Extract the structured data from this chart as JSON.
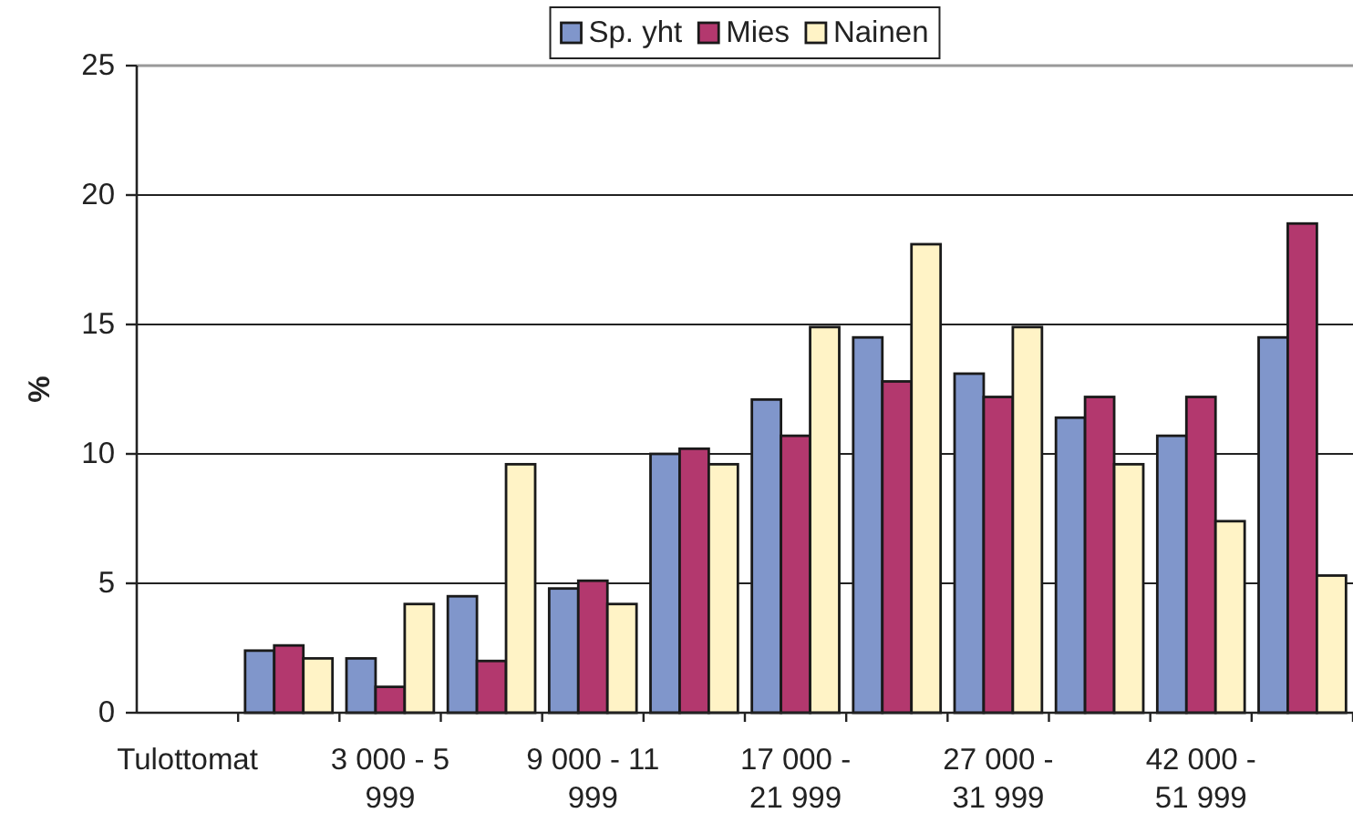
{
  "chart_data": {
    "type": "bar",
    "ylabel": "%",
    "categories": [
      "Tulottomat",
      null,
      "3 000 - 5 999",
      null,
      "9 000 - 11 999",
      null,
      "17 000 - 21 999",
      null,
      "27 000 - 31 999",
      null,
      "42 000 - 51 999",
      null
    ],
    "series": [
      {
        "name": "Sp. yht",
        "color": "#8096cb",
        "values": [
          null,
          2.4,
          2.1,
          4.5,
          4.8,
          10.0,
          12.1,
          14.5,
          13.1,
          11.4,
          10.7,
          14.5
        ]
      },
      {
        "name": "Mies",
        "color": "#b3386e",
        "values": [
          null,
          2.6,
          1.0,
          2.0,
          5.1,
          10.2,
          10.7,
          12.8,
          12.2,
          12.2,
          12.2,
          18.9
        ]
      },
      {
        "name": "Nainen",
        "color": "#fff3c6",
        "values": [
          null,
          2.1,
          4.2,
          9.6,
          4.2,
          9.6,
          14.9,
          18.1,
          14.9,
          9.6,
          7.4,
          5.3
        ]
      }
    ],
    "ylim": [
      0,
      25
    ],
    "yticks": [
      0,
      5,
      10,
      15,
      20,
      25
    ],
    "grid": "y",
    "legend": "top"
  }
}
